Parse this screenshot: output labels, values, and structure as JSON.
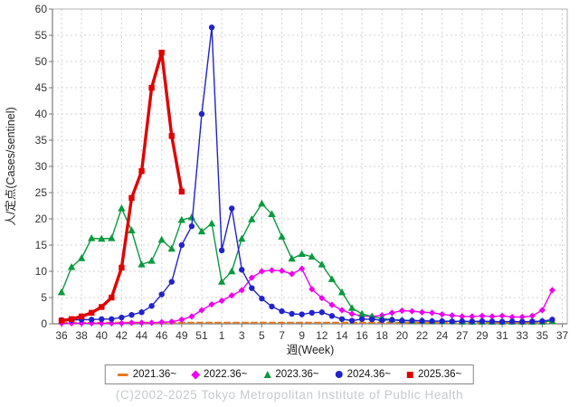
{
  "footer": {
    "text": "(C)2002-2025 Tokyo Metropolitan Institute of Public Health"
  },
  "chart_data": {
    "type": "line",
    "title": "",
    "xlabel": "週(Week)",
    "ylabel": "人/定点(Cases/sentinel)",
    "ylim": [
      0,
      60
    ],
    "grid": true,
    "legend_position": "bottom",
    "y_ticks": [
      0,
      5,
      10,
      15,
      20,
      25,
      30,
      35,
      40,
      45,
      50,
      55,
      60
    ],
    "x_tick_labels": [
      "36",
      "38",
      "40",
      "42",
      "44",
      "46",
      "49",
      "51",
      "1",
      "3",
      "5",
      "7",
      "9",
      "12",
      "14",
      "16",
      "18",
      "20",
      "22",
      "24",
      "27",
      "29",
      "31",
      "33",
      "35",
      "37"
    ],
    "colors": {
      "grid": "#d2d2d2",
      "axis": "#7a7a7a",
      "border": "#b4b4b4",
      "tick_text": "#333333",
      "footer_text": "#c6c9cc"
    },
    "series": [
      {
        "name": "2021.36~",
        "color": "#e8791e",
        "marker": "dash",
        "dashed": true,
        "line_width": 2,
        "values": [
          0.2,
          0.2,
          0.2,
          0.2,
          0.2,
          0.2,
          0.2,
          0.2,
          0.2,
          0.2,
          0.2,
          0.2,
          0.2,
          0.2,
          0.2,
          0.2,
          0.2,
          0.2,
          0.2,
          0.2,
          0.2,
          0.2,
          0.2,
          0.2,
          0.2,
          0.2,
          0.2,
          0.2,
          0.2,
          0.2,
          0.2,
          0.2,
          0.2,
          0.2,
          0.2,
          0.2,
          0.2,
          0.2,
          0.2,
          0.2,
          0.2,
          0.2,
          0.2,
          0.2,
          0.2,
          0.2,
          0.2,
          0.2,
          0.2,
          0.2
        ]
      },
      {
        "name": "2022.36~",
        "color": "#ee00ee",
        "marker": "diamond",
        "dashed": false,
        "line_width": 1.4,
        "values": [
          0.1,
          0.1,
          0.1,
          0.1,
          0.1,
          0.1,
          0.1,
          0.2,
          0.2,
          0.2,
          0.3,
          0.4,
          0.8,
          1.4,
          2.6,
          3.7,
          4.4,
          5.4,
          6.4,
          8.8,
          10.0,
          10.2,
          10.1,
          9.5,
          10.5,
          6.6,
          4.9,
          3.6,
          2.6,
          1.9,
          1.5,
          1.4,
          1.6,
          2.1,
          2.5,
          2.4,
          2.2,
          2.1,
          1.8,
          1.6,
          1.4,
          1.4,
          1.5,
          1.4,
          1.5,
          1.3,
          1.3,
          1.5,
          2.6,
          6.4
        ]
      },
      {
        "name": "2023.36~",
        "color": "#0a9a3e",
        "marker": "triangle",
        "dashed": false,
        "line_width": 1.4,
        "values": [
          6.0,
          10.8,
          12.5,
          16.3,
          16.2,
          16.3,
          22.0,
          17.8,
          11.3,
          12.0,
          16.0,
          14.3,
          19.8,
          20.3,
          17.6,
          19.1,
          8.0,
          10.0,
          16.2,
          19.9,
          22.9,
          20.9,
          16.6,
          12.4,
          13.3,
          12.8,
          11.3,
          8.5,
          6.0,
          3.0,
          1.9,
          1.4,
          1.0,
          0.8,
          0.7,
          0.6,
          0.6,
          0.5,
          0.5,
          0.5,
          0.4,
          0.4,
          0.4,
          0.4,
          0.4,
          0.4,
          0.4,
          0.4,
          0.4,
          0.5
        ]
      },
      {
        "name": "2024.36~",
        "color": "#2222cc",
        "marker": "circle",
        "dashed": false,
        "line_width": 1.4,
        "values": [
          0.7,
          0.7,
          0.8,
          0.8,
          0.9,
          0.9,
          1.2,
          1.7,
          2.2,
          3.4,
          5.6,
          8.0,
          15.0,
          18.6,
          40.0,
          56.5,
          14.0,
          22.0,
          10.3,
          6.8,
          4.8,
          3.3,
          2.4,
          1.9,
          1.8,
          2.1,
          2.2,
          1.5,
          0.9,
          0.6,
          0.9,
          0.85,
          0.7,
          0.75,
          0.6,
          0.6,
          0.55,
          0.5,
          0.5,
          0.45,
          0.5,
          0.45,
          0.5,
          0.45,
          0.4,
          0.45,
          0.4,
          0.45,
          0.5,
          0.8
        ]
      },
      {
        "name": "2025.36~",
        "color": "#e00000",
        "marker": "square",
        "dashed": false,
        "line_width": 3.4,
        "values": [
          0.6,
          0.9,
          1.4,
          2.1,
          3.2,
          5.0,
          10.7,
          24.0,
          29.1,
          45.0,
          51.7,
          35.8,
          25.2
        ]
      }
    ]
  }
}
